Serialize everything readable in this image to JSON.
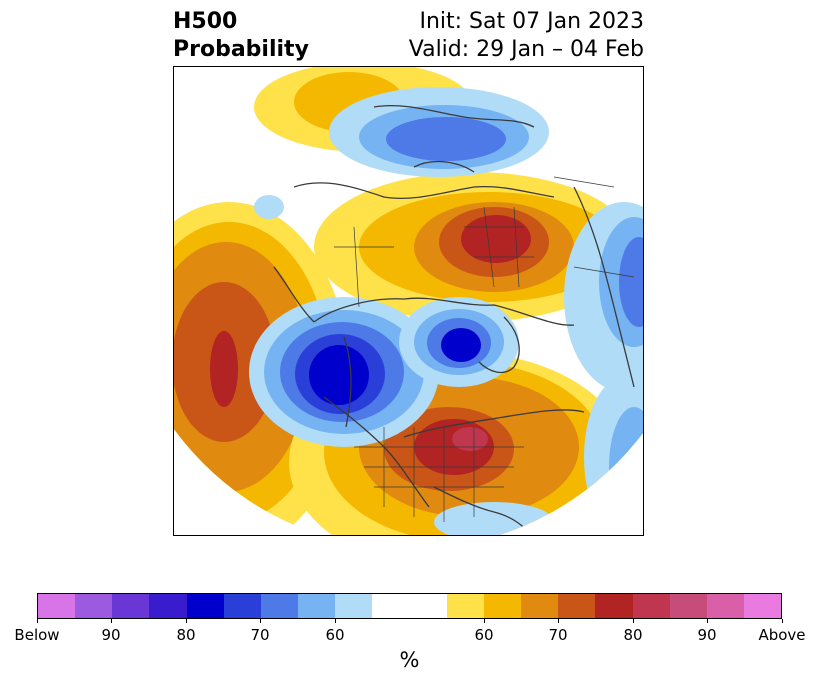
{
  "title": {
    "left_line1": "H500",
    "left_line2": "Probability",
    "right_line1": "Init: Sat 07 Jan 2023",
    "right_line2": "Valid: 29 Jan – 04 Feb"
  },
  "colorbar": {
    "colors": [
      "#d873e8",
      "#9b5ae0",
      "#6a37d6",
      "#3a1ccf",
      "#0000cc",
      "#2a3fd8",
      "#4d7ae6",
      "#76b3f2",
      "#b0dcf8",
      "#ffffff",
      "#ffffff",
      "#ffe14a",
      "#f4b800",
      "#e08a10",
      "#c95517",
      "#b22323",
      "#c0364f",
      "#c84c7a",
      "#d95fa8",
      "#e87ae0"
    ],
    "tick_labels": [
      "Below",
      "90",
      "80",
      "70",
      "60",
      "60",
      "70",
      "80",
      "90",
      "Above"
    ],
    "label": "%"
  },
  "map": {
    "projection": "north-polar-stereographic",
    "field": "500 hPa height anomaly probability"
  }
}
